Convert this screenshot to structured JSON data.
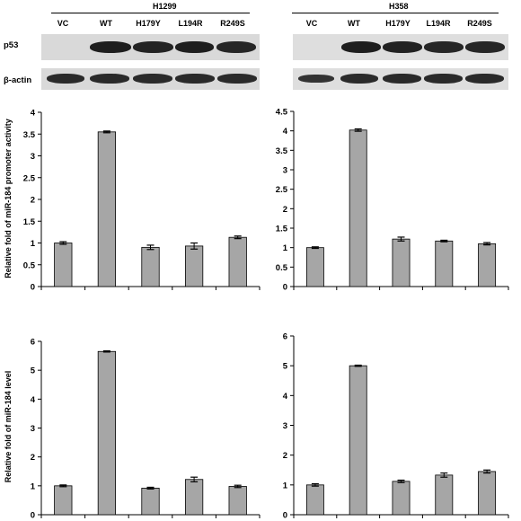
{
  "blot": {
    "left": {
      "title": "H1299",
      "lanes": [
        "VC",
        "WT",
        "H179Y",
        "L194R",
        "R249S"
      ],
      "p53_present": [
        false,
        true,
        true,
        true,
        true
      ]
    },
    "right": {
      "title": "H358",
      "lanes": [
        "VC",
        "WT",
        "H179Y",
        "L194R",
        "R249S"
      ],
      "p53_present": [
        false,
        true,
        true,
        true,
        true
      ]
    },
    "row_labels": [
      "p53",
      "β-actin"
    ],
    "colors": {
      "background": "#dcdcdc",
      "band": "#1a1a1a"
    }
  },
  "ylabels": {
    "promoter": "Relative fold of miR-184 promoter activity",
    "level": "Relative fold of miR-184 level"
  },
  "chart_data": [
    {
      "type": "bar",
      "panel": "H1299 promoter",
      "categories": [
        "VC",
        "WT",
        "H179Y",
        "L194R",
        "R249S"
      ],
      "values": [
        1.0,
        3.55,
        0.9,
        0.93,
        1.13
      ],
      "errors": [
        0.03,
        0.02,
        0.05,
        0.07,
        0.03
      ],
      "ylim": [
        0,
        4
      ],
      "yticks": [
        "0",
        "0.5",
        "1",
        "1.5",
        "2",
        "2.5",
        "3",
        "3.5",
        "4"
      ],
      "bar_color": "#a6a6a6"
    },
    {
      "type": "bar",
      "panel": "H358 promoter",
      "categories": [
        "VC",
        "WT",
        "H179Y",
        "L194R",
        "R249S"
      ],
      "values": [
        1.0,
        4.02,
        1.22,
        1.17,
        1.1
      ],
      "errors": [
        0.02,
        0.03,
        0.05,
        0.02,
        0.03
      ],
      "ylim": [
        0,
        4.5
      ],
      "yticks": [
        "0",
        "0.5",
        "1",
        "1.5",
        "2",
        "2.5",
        "3",
        "3.5",
        "4",
        "4.5"
      ],
      "bar_color": "#a6a6a6"
    },
    {
      "type": "bar",
      "panel": "H1299 level",
      "categories": [
        "VC",
        "WT",
        "H179Y",
        "L194R",
        "R249S"
      ],
      "values": [
        1.0,
        5.65,
        0.92,
        1.22,
        0.98
      ],
      "errors": [
        0.03,
        0.02,
        0.03,
        0.08,
        0.04
      ],
      "ylim": [
        0,
        6
      ],
      "yticks": [
        "0",
        "1",
        "2",
        "3",
        "4",
        "5",
        "6"
      ],
      "bar_color": "#a6a6a6"
    },
    {
      "type": "bar",
      "panel": "H358 level",
      "categories": [
        "VC",
        "WT",
        "H179Y",
        "L194R",
        "R249S"
      ],
      "values": [
        1.0,
        5.0,
        1.12,
        1.33,
        1.45
      ],
      "errors": [
        0.04,
        0.02,
        0.04,
        0.07,
        0.05
      ],
      "ylim": [
        0,
        6
      ],
      "yticks": [
        "0",
        "1",
        "2",
        "3",
        "4",
        "5",
        "6"
      ],
      "bar_color": "#a6a6a6"
    }
  ]
}
